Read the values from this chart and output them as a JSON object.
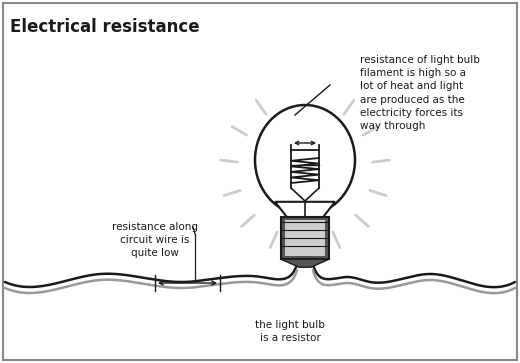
{
  "title": "Electrical resistance",
  "bg_color": "#ffffff",
  "border_color": "#888888",
  "annotation_bulb": "resistance of light bulb\nfilament is high so a\nlot of heat and light\nare produced as the\nelectricity forces its\nway through",
  "annotation_wire": "resistance along\ncircuit wire is\nquite low",
  "annotation_resistor": "the light bulb\nis a resistor",
  "dark_color": "#1a1a1a",
  "light_gray": "#cccccc",
  "medium_gray": "#999999",
  "dark_gray": "#555555"
}
